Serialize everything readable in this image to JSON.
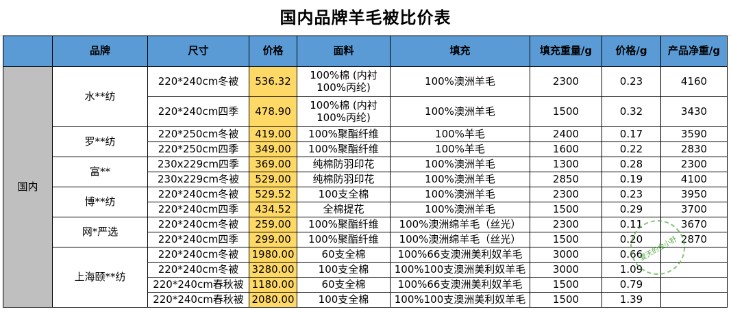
{
  "title": "国内品牌羊毛被比价表",
  "headers": [
    "",
    "品牌",
    "尺寸",
    "价格",
    "面料",
    "填充",
    "填充重量/g",
    "价格/g",
    "产品净重/g"
  ],
  "region": "国内",
  "brands": [
    {
      "name": "水**纺",
      "rows": [
        {
          "size": "220*240cm冬被",
          "price": "536.32",
          "fabric": "100%棉\n(内衬100%丙纶)",
          "fill": "100%澳洲羊毛",
          "fill_weight": "2300",
          "per_gram": "0.23",
          "net_weight": "4160"
        },
        {
          "size": "220*240cm四季",
          "price": "478.90",
          "fabric": "100%棉\n(内衬100%丙纶)",
          "fill": "100%澳洲羊毛",
          "fill_weight": "1500",
          "per_gram": "0.32",
          "net_weight": "3430"
        }
      ]
    },
    {
      "name": "罗**纺",
      "rows": [
        {
          "size": "220*250cm冬被",
          "price": "419.00",
          "fabric": "100%聚酯纤维",
          "fill": "100%羊毛",
          "fill_weight": "2400",
          "per_gram": "0.17",
          "net_weight": "3590"
        },
        {
          "size": "220*250cm四季",
          "price": "349.00",
          "fabric": "100%聚酯纤维",
          "fill": "100%羊毛",
          "fill_weight": "1600",
          "per_gram": "0.22",
          "net_weight": "2830"
        }
      ]
    },
    {
      "name": "富**",
      "rows": [
        {
          "size": "230x229cm四季",
          "price": "369.00",
          "fabric": "纯棉防羽印花",
          "fill": "100%澳洲羊毛",
          "fill_weight": "1300",
          "per_gram": "0.28",
          "net_weight": "2300"
        },
        {
          "size": "230x229cm冬被",
          "price": "529.00",
          "fabric": "纯棉防羽印花",
          "fill": "100%澳洲羊毛",
          "fill_weight": "2850",
          "per_gram": "0.19",
          "net_weight": "4100"
        }
      ]
    },
    {
      "name": "博**纺",
      "rows": [
        {
          "size": "220*240cm冬被",
          "price": "529.52",
          "fabric": "100支全棉",
          "fill": "100%澳洲羊毛",
          "fill_weight": "2300",
          "per_gram": "0.23",
          "net_weight": "3950"
        },
        {
          "size": "220*240cm四季",
          "price": "434.52",
          "fabric": "全棉提花",
          "fill": "100%澳洲羊毛",
          "fill_weight": "1500",
          "per_gram": "0.29",
          "net_weight": "3700"
        }
      ]
    },
    {
      "name": "网*严选",
      "rows": [
        {
          "size": "220*240cm冬被",
          "price": "259.00",
          "fabric": "100%聚酯纤维",
          "fill": "100%澳洲绵羊毛（丝光）",
          "fill_weight": "2300",
          "per_gram": "0.11",
          "net_weight": "3670"
        },
        {
          "size": "220*240cm四季",
          "price": "299.00",
          "fabric": "100%聚酯纤维",
          "fill": "100%澳洲绵羊毛（丝光）",
          "fill_weight": "1500",
          "per_gram": "0.20",
          "net_weight": "2870"
        }
      ]
    },
    {
      "name": "上海颐**纺",
      "rows": [
        {
          "size": "220*240cm冬被",
          "price": "1980.00",
          "fabric": "60支全棉",
          "fill": "100%66支澳洲美利奴羊毛",
          "fill_weight": "3000",
          "per_gram": "0.66",
          "net_weight": ""
        },
        {
          "size": "220*240cm冬被",
          "price": "3280.00",
          "fabric": "100支全棉",
          "fill": "100%100支澳洲美利奴羊毛",
          "fill_weight": "3000",
          "per_gram": "1.09",
          "net_weight": ""
        },
        {
          "size": "220*240cm春秋被",
          "price": "1180.00",
          "fabric": "60支全棉",
          "fill": "100%66支澳洲美利奴羊毛",
          "fill_weight": "1500",
          "per_gram": "0.79",
          "net_weight": ""
        },
        {
          "size": "220*240cm春秋被",
          "price": "2080.00",
          "fabric": "100支全棉",
          "fill": "100%100支澳洲美利奴羊毛",
          "fill_weight": "1500",
          "per_gram": "1.39",
          "net_weight": ""
        }
      ]
    }
  ],
  "watermark": "夏天的金小舒",
  "colors": {
    "header": "#5b9bd5",
    "price_highlight": "#ffd966",
    "region": "#bfbfbf"
  }
}
